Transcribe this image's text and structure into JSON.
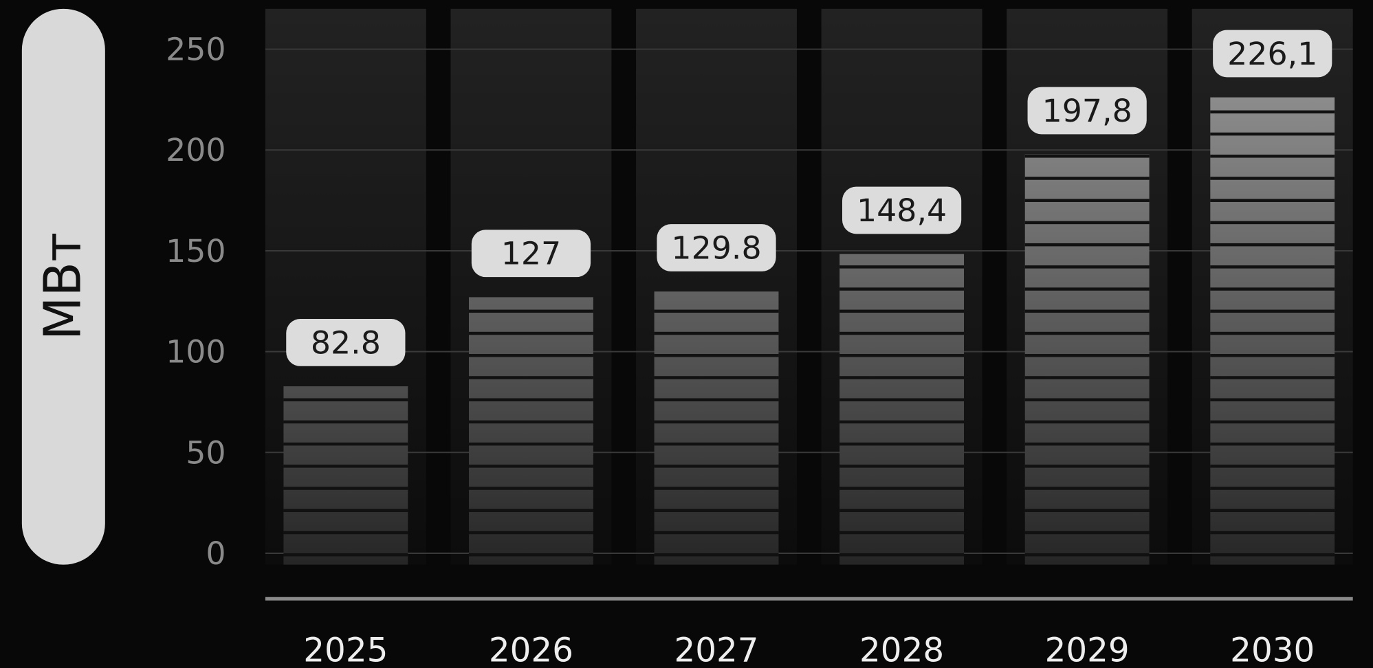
{
  "chart_data": {
    "type": "bar",
    "y_label": "МВт",
    "categories": [
      "2025",
      "2026",
      "2027",
      "2028",
      "2029",
      "2030"
    ],
    "values": [
      82.8,
      127,
      129.8,
      148.4,
      197.8,
      226.1
    ],
    "value_labels": [
      "82.8",
      "127",
      "129.8",
      "148,4",
      "197,8",
      "226,1"
    ],
    "color": "#888888",
    "ylim": [
      0,
      270
    ],
    "yticks": [
      0,
      50,
      100,
      150,
      200,
      250
    ],
    "grid": true
  }
}
